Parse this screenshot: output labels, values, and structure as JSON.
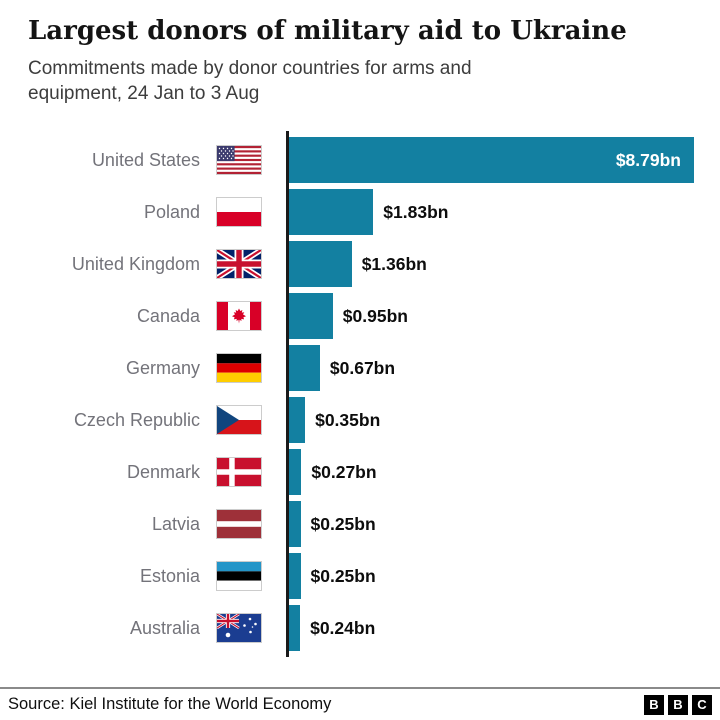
{
  "header": {
    "title": "Largest donors of military aid to Ukraine",
    "subtitle_line1": "Commitments made by donor countries for arms and",
    "subtitle_line2": "equipment, 24 Jan to 3 Aug"
  },
  "chart_data": {
    "type": "bar",
    "orientation": "horizontal",
    "title": "Largest donors of military aid to Ukraine",
    "subtitle": "Commitments made by donor countries for arms and equipment, 24 Jan to 3 Aug",
    "unit": "USD billions",
    "categories": [
      "United States",
      "Poland",
      "United Kingdom",
      "Canada",
      "Germany",
      "Czech Republic",
      "Denmark",
      "Latvia",
      "Estonia",
      "Australia"
    ],
    "values": [
      8.79,
      1.83,
      1.36,
      0.95,
      0.67,
      0.35,
      0.27,
      0.25,
      0.25,
      0.24
    ],
    "value_labels": [
      "$8.79bn",
      "$1.83bn",
      "$1.36bn",
      "$0.95bn",
      "$0.67bn",
      "$0.35bn",
      "$0.27bn",
      "$0.25bn",
      "$0.25bn",
      "$0.24bn"
    ],
    "max_value": 8.79,
    "xlim": [
      0,
      9.2
    ],
    "bar_color": "#1380A1",
    "axis_color": "#1a1a1a",
    "grid": false,
    "legend": false
  },
  "footer": {
    "source": "Source: Kiel Institute for the World Economy",
    "logo": [
      "B",
      "B",
      "C"
    ]
  }
}
